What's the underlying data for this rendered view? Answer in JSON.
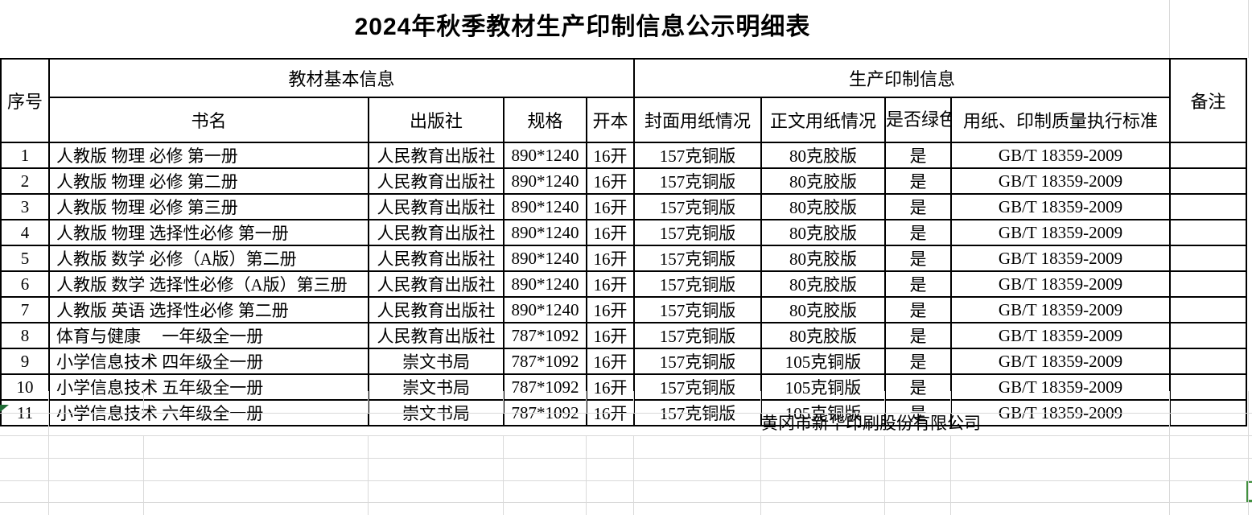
{
  "title": "2024年秋季教材生产印制信息公示明细表",
  "table": {
    "headers": {
      "serial": "序号",
      "basic_info_group": "教材基本信息",
      "production_group": "生产印制信息",
      "book_name": "书名",
      "publisher": "出版社",
      "spec": "规格",
      "format": "开本",
      "cover_paper": "封面用纸情况",
      "body_paper": "正文用纸情况",
      "green_print": "是否绿色印刷",
      "standard": "用纸、印制质量执行标准",
      "remark": "备注"
    },
    "rows": [
      [
        "1",
        "人教版 物理 必修 第一册",
        "人民教育出版社",
        "890*1240",
        "16开",
        "157克铜版",
        "80克胶版",
        "是",
        "GB/T 18359-2009",
        ""
      ],
      [
        "2",
        "人教版 物理 必修 第二册",
        "人民教育出版社",
        "890*1240",
        "16开",
        "157克铜版",
        "80克胶版",
        "是",
        "GB/T 18359-2009",
        ""
      ],
      [
        "3",
        "人教版 物理 必修 第三册",
        "人民教育出版社",
        "890*1240",
        "16开",
        "157克铜版",
        "80克胶版",
        "是",
        "GB/T 18359-2009",
        ""
      ],
      [
        "4",
        "人教版 物理 选择性必修 第一册",
        "人民教育出版社",
        "890*1240",
        "16开",
        "157克铜版",
        "80克胶版",
        "是",
        "GB/T 18359-2009",
        ""
      ],
      [
        "5",
        "人教版 数学 必修（A版）第二册",
        "人民教育出版社",
        "890*1240",
        "16开",
        "157克铜版",
        "80克胶版",
        "是",
        "GB/T 18359-2009",
        ""
      ],
      [
        "6",
        "人教版 数学 选择性必修（A版）第三册",
        "人民教育出版社",
        "890*1240",
        "16开",
        "157克铜版",
        "80克胶版",
        "是",
        "GB/T 18359-2009",
        ""
      ],
      [
        "7",
        "人教版 英语 选择性必修 第二册",
        "人民教育出版社",
        "890*1240",
        "16开",
        "157克铜版",
        "80克胶版",
        "是",
        "GB/T 18359-2009",
        ""
      ],
      [
        "8",
        "体育与健康　 一年级全一册",
        "人民教育出版社",
        "787*1092",
        "16开",
        "157克铜版",
        "80克胶版",
        "是",
        "GB/T 18359-2009",
        ""
      ],
      [
        "9",
        "小学信息技术 四年级全一册",
        "崇文书局",
        "787*1092",
        "16开",
        "157克铜版",
        "105克铜版",
        "是",
        "GB/T 18359-2009",
        ""
      ],
      [
        "10",
        "小学信息技术 五年级全一册",
        "崇文书局",
        "787*1092",
        "16开",
        "157克铜版",
        "105克铜版",
        "是",
        "GB/T 18359-2009",
        ""
      ],
      [
        "11",
        "小学信息技术 六年级全一册",
        "崇文书局",
        "787*1092",
        "16开",
        "157克铜版",
        "105克铜版",
        "是",
        "GB/T 18359-2009",
        ""
      ]
    ]
  },
  "footer": {
    "company": "黄冈市新华印刷股份有限公司"
  },
  "colors": {
    "table_border": "#000000",
    "gridline": "#d9d9d9",
    "marker_green": "#1f6b35",
    "selection_green": "#41903f"
  }
}
